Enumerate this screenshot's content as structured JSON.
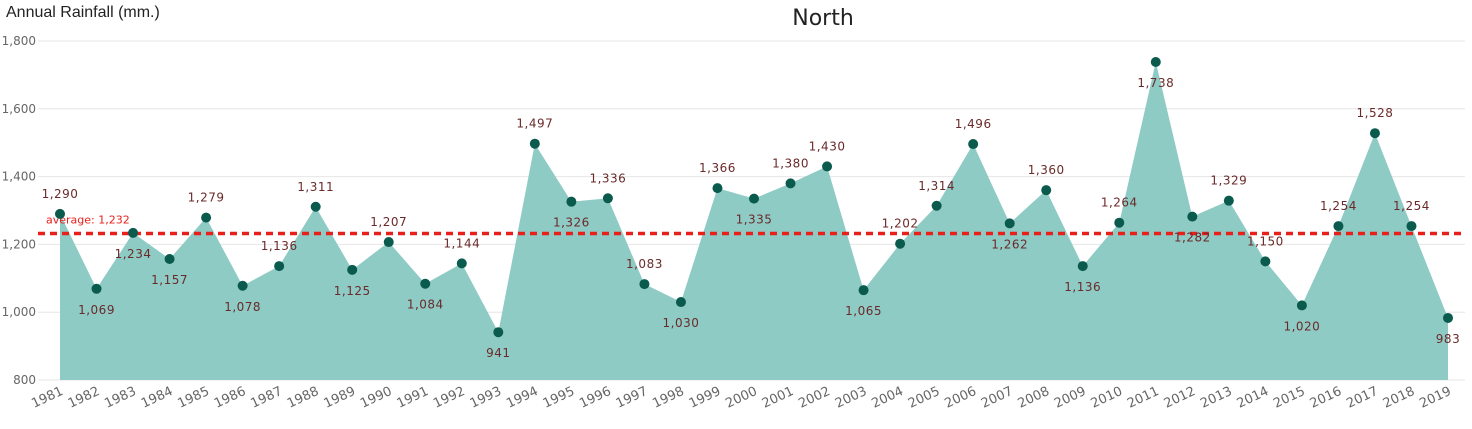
{
  "chart_data": {
    "type": "area",
    "title": "North",
    "ylabel": "Annual Rainfall (mm.)",
    "xlabel": "",
    "ylim": [
      800,
      1800
    ],
    "yticks": [
      "800",
      "1,000",
      "1,200",
      "1,400",
      "1,600",
      "1,800"
    ],
    "ytick_values": [
      800,
      1000,
      1200,
      1400,
      1600,
      1800
    ],
    "grid": "horizontal",
    "categories": [
      "1981",
      "1982",
      "1983",
      "1984",
      "1985",
      "1986",
      "1987",
      "1988",
      "1989",
      "1990",
      "1991",
      "1992",
      "1993",
      "1994",
      "1995",
      "1996",
      "1997",
      "1998",
      "1999",
      "2000",
      "2001",
      "2002",
      "2003",
      "2004",
      "2005",
      "2006",
      "2007",
      "2008",
      "2009",
      "2010",
      "2011",
      "2012",
      "2013",
      "2014",
      "2015",
      "2016",
      "2017",
      "2018",
      "2019"
    ],
    "values": [
      1290,
      1069,
      1234,
      1157,
      1279,
      1078,
      1136,
      1311,
      1125,
      1207,
      1084,
      1144,
      941,
      1497,
      1326,
      1336,
      1083,
      1030,
      1366,
      1335,
      1380,
      1430,
      1065,
      1202,
      1314,
      1496,
      1262,
      1360,
      1136,
      1264,
      1738,
      1282,
      1329,
      1150,
      1020,
      1254,
      1528,
      1254,
      983
    ],
    "value_labels": [
      "1,290",
      "1,069",
      "1,234",
      "1,157",
      "1,279",
      "1,078",
      "1,136",
      "1,311",
      "1,125",
      "1,207",
      "1,084",
      "1,144",
      "941",
      "1,497",
      "1,326",
      "1,336",
      "1,083",
      "1,030",
      "1,366",
      "1,335",
      "1,380",
      "1,430",
      "1,065",
      "1,202",
      "1,314",
      "1,496",
      "1,262",
      "1,360",
      "1,136",
      "1,264",
      "1,738",
      "1,282",
      "1,329",
      "1,150",
      "1,020",
      "1,254",
      "1,528",
      "1,254",
      "983"
    ],
    "label_positions": [
      "above",
      "below",
      "below",
      "below",
      "above",
      "below",
      "above",
      "above",
      "below",
      "above",
      "below",
      "above",
      "below",
      "above",
      "below",
      "above",
      "above",
      "below",
      "above",
      "below",
      "above",
      "above",
      "below",
      "above",
      "above",
      "above",
      "below",
      "above",
      "below",
      "above",
      "below",
      "below",
      "above",
      "above",
      "below",
      "above",
      "above",
      "above",
      "below"
    ],
    "average": {
      "label": "average: 1,232",
      "value": 1232
    },
    "colors": {
      "area": "#8ecbc5",
      "marker": "#0b5a4e",
      "data_label": "#6b2a2a",
      "average_line": "#e8201c",
      "grid": "#e6e6e6",
      "axis_text": "#666666"
    }
  }
}
